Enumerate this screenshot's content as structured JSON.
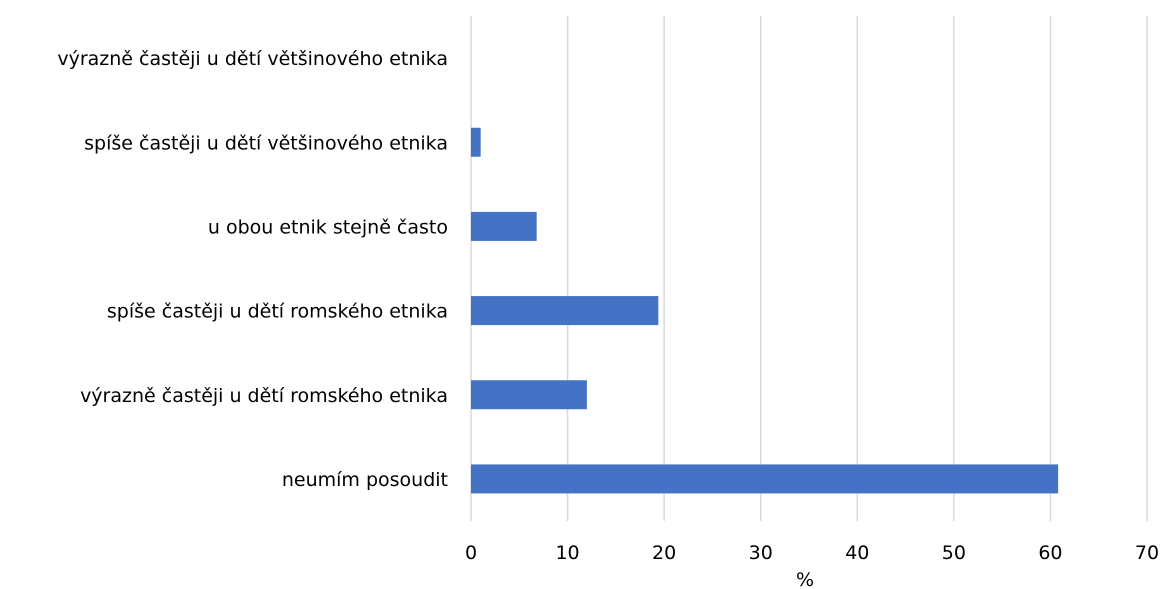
{
  "chart_data": {
    "type": "bar",
    "orientation": "horizontal",
    "categories": [
      "výrazně častěji u dětí většinového etnika",
      "spíše častěji u dětí většinového etnika",
      "u obou etnik stejně často",
      "spíše častěji u dětí romského etnika",
      "výrazně častěji u dětí romského etnika",
      "neumím posoudit"
    ],
    "values": [
      0,
      1,
      6.8,
      19.4,
      12,
      60.8
    ],
    "xlabel": "%",
    "ylabel": "",
    "xlim": [
      0,
      70
    ],
    "xticks": [
      0,
      10,
      20,
      30,
      40,
      50,
      60,
      70
    ],
    "grid": true,
    "bar_color": "#4472C4",
    "gridline_color": "#d9d9d9"
  }
}
